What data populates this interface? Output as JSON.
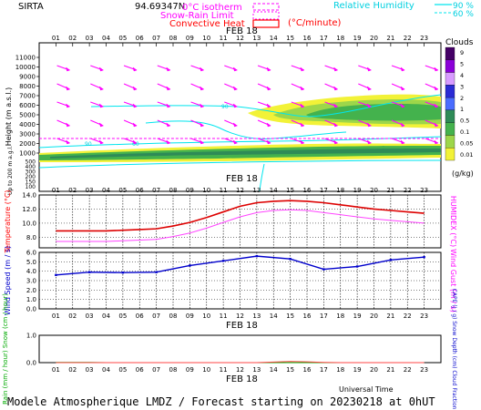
{
  "header": {
    "site": "SIRTA",
    "code": "94.69347N",
    "iso_label": "0°C isotherm",
    "snow_label": "Snow-Rain Limit",
    "conv_label": "Convective Heat",
    "conv_unit": "(°C/minute)",
    "rh_label": "Relative Humidity",
    "rh_90": "90 %",
    "rh_60": "60 %"
  },
  "colors": {
    "magenta": "#ff00ff",
    "red": "#ff0000",
    "cyan": "#00e5ee",
    "blue": "#0000cc",
    "green": "#00aa00"
  },
  "date_label": "FEB 18",
  "hours": [
    "01",
    "02",
    "03",
    "04",
    "05",
    "06",
    "07",
    "08",
    "09",
    "10",
    "11",
    "12",
    "13",
    "14",
    "15",
    "16",
    "17",
    "18",
    "19",
    "20",
    "21",
    "22",
    "23"
  ],
  "footer": {
    "model": "Modele Atmospherique LMDZ / Forecast starting on 20230218 at 0hUT",
    "xlabel": "Universal Time"
  },
  "chart_data": [
    {
      "type": "heatmap",
      "title": "Clouds",
      "ylabel": "Height (m a.s.l.)",
      "ylabel2": "Up to 200 m a.g.l.",
      "yticks_upper": [
        "11000",
        "10000",
        "9000",
        "8000",
        "7000",
        "6000",
        "5000",
        "4000",
        "3000",
        "2000",
        "1000"
      ],
      "yticks_lower": [
        "500",
        "400",
        "300",
        "200",
        "150",
        "100"
      ],
      "colorbar_title": "Clouds",
      "colorbar_unit": "(g/kg)",
      "colorbar_ticks": [
        "9",
        "5",
        "4",
        "3",
        "2",
        "1",
        "0.5",
        "0.1",
        "0.05",
        "0.01"
      ],
      "colorbar_colors": [
        "#440066",
        "#8b00d8",
        "#d89bff",
        "#2b2bd5",
        "#4a6cff",
        "#2e8b57",
        "#44b24d",
        "#9dd64a",
        "#f2f237"
      ],
      "rh_contour_labels": [
        "60",
        "90"
      ]
    },
    {
      "type": "line",
      "ylabel": "Temperature (°C)",
      "ylabel_right": "HUMIDEX (°C)",
      "ylim": [
        6.5,
        14
      ],
      "yticks": [
        "14.0",
        "12.0",
        "10.0",
        "8.0"
      ],
      "x": [
        1,
        2,
        3,
        4,
        5,
        6,
        7,
        8,
        9,
        10,
        11,
        12,
        13,
        14,
        15,
        16,
        17,
        18,
        19,
        20,
        21,
        22,
        23
      ],
      "series": [
        {
          "values": [
            8.9,
            8.9,
            8.9,
            8.9,
            9.0,
            9.1,
            9.2,
            9.6,
            10.1,
            10.8,
            11.6,
            12.4,
            12.9,
            13.1,
            13.2,
            13.1,
            12.9,
            12.6,
            12.3,
            12.0,
            11.8,
            11.6,
            11.4
          ]
        },
        {
          "values": [
            7.4,
            7.4,
            7.4,
            7.4,
            7.5,
            7.6,
            7.7,
            8.1,
            8.6,
            9.3,
            10.1,
            10.9,
            11.5,
            11.8,
            11.9,
            11.8,
            11.5,
            11.2,
            10.9,
            10.6,
            10.4,
            10.2,
            10.0
          ]
        }
      ]
    },
    {
      "type": "line",
      "ylabel": "Wind Speed (m / s)",
      "ylabel_right": "Wind Gust (m / s)",
      "ylim": [
        0,
        6
      ],
      "yticks": [
        "6.0",
        "5.0",
        "4.0",
        "3.0",
        "2.0",
        "1.0",
        "0.0"
      ],
      "x": [
        1,
        3,
        5,
        7,
        9,
        11,
        13,
        15,
        17,
        19,
        21,
        23
      ],
      "series": [
        {
          "values": [
            3.6,
            3.9,
            3.85,
            3.9,
            4.6,
            5.1,
            5.6,
            5.3,
            4.2,
            4.5,
            5.2,
            5.5
          ]
        }
      ]
    },
    {
      "type": "line",
      "ylabel": "Rain (mm / hour) Snow (cm / hour)",
      "ylabel_right": "CAPE (J / g) Snow Depth (cm) Cloud Fraction",
      "ylim": [
        0,
        1
      ],
      "yticks": [
        "1.0",
        "0.0"
      ],
      "x": [
        1,
        2,
        3,
        4,
        5,
        6,
        7,
        8,
        9,
        10,
        11,
        12,
        13,
        14,
        15,
        16,
        17,
        18,
        19,
        20,
        21,
        22,
        23
      ],
      "series": [
        {
          "values": [
            0.01,
            0.01,
            0.01,
            0.0,
            0.0,
            0.0,
            0.0,
            0.0,
            0.0,
            0.0,
            0.0,
            0.0,
            0.0,
            0.0,
            0.0,
            0.0,
            0.0,
            0.0,
            0.0,
            0.0,
            0.0,
            0.0,
            0.0
          ]
        },
        {
          "values": [
            0.0,
            0.0,
            0.0,
            0.0,
            0.0,
            0.0,
            0.0,
            0.0,
            0.0,
            0.0,
            0.0,
            0.0,
            0.0,
            0.02,
            0.04,
            0.03,
            0.01,
            0.0,
            0.0,
            0.0,
            0.0,
            0.0,
            0.0
          ]
        }
      ]
    }
  ]
}
